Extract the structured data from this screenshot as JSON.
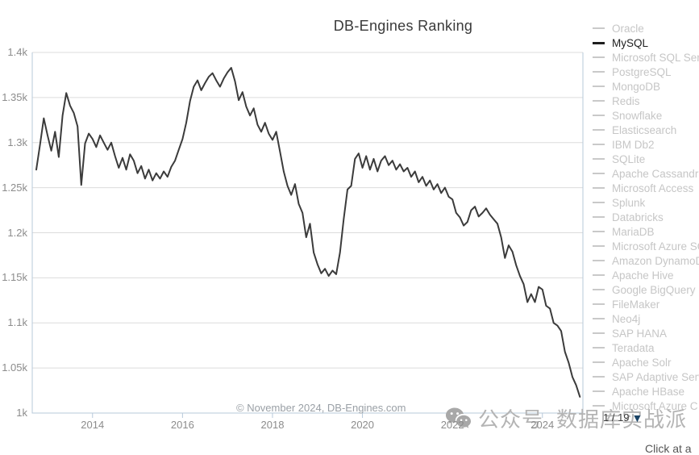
{
  "header": {
    "title": "DB-Engines Ranking"
  },
  "chart_data": {
    "type": "line",
    "title": "DB-Engines Ranking",
    "xlabel": "",
    "ylabel": "",
    "grid": true,
    "legend_position": "right",
    "xlim": [
      2012.66,
      2024.9
    ],
    "ylim": [
      1000,
      1400
    ],
    "x_tick_values": [
      2014,
      2016,
      2018,
      2020,
      2022,
      2024
    ],
    "x_tick_labels": [
      "2014",
      "2016",
      "2018",
      "2020",
      "2022",
      "2024"
    ],
    "y_tick_values": [
      1400,
      1350,
      1300,
      1250,
      1200,
      1150,
      1100,
      1050,
      1000
    ],
    "y_tick_labels": [
      "1.4k",
      "1.35k",
      "1.3k",
      "1.25k",
      "1.2k",
      "1.15k",
      "1.1k",
      "1.05k",
      "1k"
    ],
    "copyright": "© November 2024, DB-Engines.com",
    "series": [
      {
        "name": "MySQL",
        "color": "#3b3b3b",
        "start_year": 2012,
        "start_month": 10,
        "interval": "monthly",
        "values": [
          1270,
          1298,
          1327,
          1308,
          1291,
          1312,
          1284,
          1330,
          1355,
          1341,
          1333,
          1318,
          1253,
          1299,
          1310,
          1304,
          1295,
          1308,
          1300,
          1292,
          1300,
          1285,
          1272,
          1283,
          1270,
          1287,
          1280,
          1266,
          1274,
          1260,
          1270,
          1258,
          1266,
          1260,
          1268,
          1262,
          1273,
          1280,
          1292,
          1304,
          1322,
          1346,
          1362,
          1369,
          1358,
          1366,
          1373,
          1377,
          1369,
          1362,
          1371,
          1378,
          1383,
          1368,
          1347,
          1356,
          1340,
          1330,
          1338,
          1320,
          1312,
          1322,
          1310,
          1303,
          1312,
          1290,
          1268,
          1252,
          1242,
          1254,
          1232,
          1222,
          1195,
          1210,
          1178,
          1165,
          1155,
          1160,
          1152,
          1158,
          1154,
          1178,
          1215,
          1248,
          1252,
          1282,
          1288,
          1272,
          1285,
          1270,
          1282,
          1268,
          1280,
          1285,
          1275,
          1280,
          1270,
          1276,
          1268,
          1272,
          1262,
          1268,
          1256,
          1262,
          1252,
          1258,
          1248,
          1254,
          1244,
          1250,
          1240,
          1237,
          1222,
          1217,
          1208,
          1212,
          1225,
          1229,
          1218,
          1222,
          1227,
          1220,
          1215,
          1210,
          1195,
          1172,
          1186,
          1179,
          1164,
          1152,
          1143,
          1123,
          1132,
          1123,
          1140,
          1137,
          1119,
          1116,
          1100,
          1097,
          1091,
          1068,
          1056,
          1040,
          1031,
          1018
        ]
      }
    ]
  },
  "legend": {
    "selected_color": "#1e1e1e",
    "unselected_color": "#c6c6c6",
    "items": [
      {
        "label": "Oracle",
        "selected": false
      },
      {
        "label": "MySQL",
        "selected": true
      },
      {
        "label": "Microsoft SQL Serv",
        "selected": false
      },
      {
        "label": "PostgreSQL",
        "selected": false
      },
      {
        "label": "MongoDB",
        "selected": false
      },
      {
        "label": "Redis",
        "selected": false
      },
      {
        "label": "Snowflake",
        "selected": false
      },
      {
        "label": "Elasticsearch",
        "selected": false
      },
      {
        "label": "IBM Db2",
        "selected": false
      },
      {
        "label": "SQLite",
        "selected": false
      },
      {
        "label": "Apache Cassandra",
        "selected": false
      },
      {
        "label": "Microsoft Access",
        "selected": false
      },
      {
        "label": "Splunk",
        "selected": false
      },
      {
        "label": "Databricks",
        "selected": false
      },
      {
        "label": "MariaDB",
        "selected": false
      },
      {
        "label": "Microsoft Azure SQ",
        "selected": false
      },
      {
        "label": "Amazon DynamoD",
        "selected": false
      },
      {
        "label": "Apache Hive",
        "selected": false
      },
      {
        "label": "Google BigQuery",
        "selected": false
      },
      {
        "label": "FileMaker",
        "selected": false
      },
      {
        "label": "Neo4j",
        "selected": false
      },
      {
        "label": "SAP HANA",
        "selected": false
      },
      {
        "label": "Teradata",
        "selected": false
      },
      {
        "label": "Apache Solr",
        "selected": false
      },
      {
        "label": "SAP Adaptive Serv",
        "selected": false
      },
      {
        "label": "Apache HBase",
        "selected": false
      },
      {
        "label": "Microsoft Azure C",
        "selected": false
      }
    ],
    "pagination": {
      "current": "1 / 19",
      "arrow_icon": "▼",
      "arrow_color": "#1b4466"
    }
  },
  "watermark": {
    "prefix": "公众号",
    "name": "数据库实战派",
    "icon": "wechat-icon",
    "color": "#b4b4b4"
  },
  "footer": {
    "hint": "Click at a"
  }
}
